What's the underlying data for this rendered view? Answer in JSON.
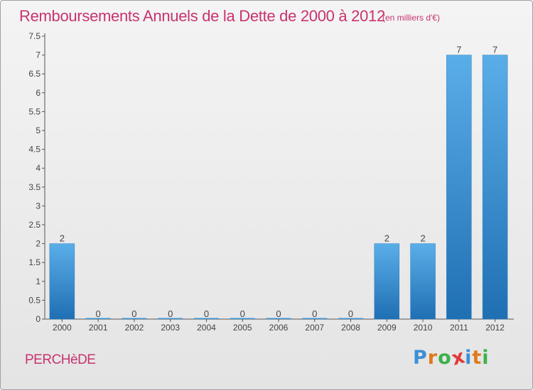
{
  "title": "Remboursements Annuels de la Dette de 2000 à 2012",
  "unit": "(en milliers d'€)",
  "commune": "PERCHèDE",
  "logo": {
    "letters": [
      "P",
      "r",
      "o",
      "x",
      "i",
      "t",
      "i"
    ],
    "colors": [
      "#3b8fd6",
      "#e07a1c",
      "#3bb14a",
      "#e03a3a",
      "#3b8fd6",
      "#e07a1c",
      "#3bb14a"
    ]
  },
  "colors": {
    "bar": "#3a97dc",
    "bar_dark": "#1f6fb3",
    "accent": "#c8336f",
    "axis": "#555555"
  },
  "chart_data": {
    "type": "bar",
    "categories": [
      "2000",
      "2001",
      "2002",
      "2003",
      "2004",
      "2005",
      "2006",
      "2007",
      "2008",
      "2009",
      "2010",
      "2011",
      "2012"
    ],
    "values": [
      2,
      0,
      0,
      0,
      0,
      0,
      0,
      0,
      0,
      2,
      2,
      7,
      7
    ],
    "value_labels": [
      "2",
      "0",
      "0",
      "0",
      "0",
      "0",
      "0",
      "0",
      "0",
      "2",
      "2",
      "7",
      "7"
    ],
    "yticks": [
      "0",
      "0.5",
      "1",
      "1.5",
      "2",
      "2.5",
      "3",
      "3.5",
      "4",
      "4.5",
      "5",
      "5.5",
      "6",
      "6.5",
      "7",
      "7.5"
    ],
    "ylim": [
      0,
      7.5
    ],
    "title": "Remboursements Annuels de la Dette de 2000 à 2012",
    "xlabel": "",
    "ylabel": "",
    "grid": false,
    "legend": "none"
  }
}
